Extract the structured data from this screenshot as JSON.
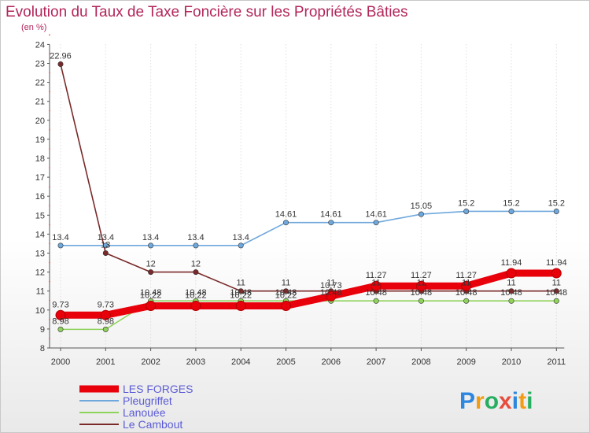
{
  "chart_data": {
    "type": "line",
    "title": "Evolution du Taux de Taxe Foncière sur les Propriétés Bâties",
    "unit": "(en %)",
    "x": [
      "2000",
      "2001",
      "2002",
      "2003",
      "2004",
      "2005",
      "2006",
      "2007",
      "2008",
      "2009",
      "2010",
      "2011"
    ],
    "ylim": [
      8,
      24
    ],
    "yticks": [
      8,
      9,
      10,
      11,
      12,
      13,
      14,
      15,
      16,
      17,
      18,
      19,
      20,
      21,
      22,
      23,
      24
    ],
    "series": [
      {
        "name": "LES FORGES",
        "color": "#e8000b",
        "values": [
          9.73,
          9.73,
          10.22,
          10.22,
          10.22,
          10.22,
          10.73,
          11.27,
          11.27,
          11.27,
          11.94,
          11.94
        ],
        "labels": [
          "9.73",
          "9.73",
          "10.22",
          "10.22",
          "10.22",
          "10.22",
          "10.73",
          "11.27",
          "11.27",
          "11.27",
          "11.94",
          "11.94"
        ]
      },
      {
        "name": "Pleugriffet",
        "color": "#6fa8dc",
        "values": [
          13.4,
          13.4,
          13.4,
          13.4,
          13.4,
          14.61,
          14.61,
          14.61,
          15.05,
          15.2,
          15.2,
          15.2
        ],
        "labels": [
          "13.4",
          "13.4",
          "13.4",
          "13.4",
          "13.4",
          "14.61",
          "14.61",
          "14.61",
          "15.05",
          "15.2",
          "15.2",
          "15.2"
        ]
      },
      {
        "name": "Lanouée",
        "color": "#8fd35b",
        "values": [
          8.98,
          8.98,
          10.48,
          10.48,
          10.48,
          10.48,
          10.48,
          10.48,
          10.48,
          10.48,
          10.48,
          10.48
        ],
        "labels": [
          "8.98",
          "8.98",
          "10.48",
          "10.48",
          "10.48",
          "10.48",
          "10.48",
          "10.48",
          "10.48",
          "10.48",
          "10.48",
          "10.48"
        ]
      },
      {
        "name": "Le Cambout",
        "color": "#7a2a2a",
        "values": [
          22.96,
          13,
          12,
          12,
          11,
          11,
          11,
          11,
          11,
          11,
          11,
          11
        ],
        "labels": [
          "22.96",
          "13",
          "12",
          "12",
          "11",
          "11",
          "11",
          "11",
          "11",
          "11",
          "11",
          "11"
        ]
      }
    ]
  },
  "logo": {
    "letters": [
      "P",
      "r",
      "o",
      "x",
      "i",
      "t",
      "i"
    ],
    "colors": [
      "#2e86de",
      "#f39c12",
      "#27ae60",
      "#e74c3c",
      "#2e86de",
      "#f39c12",
      "#27ae60"
    ]
  }
}
